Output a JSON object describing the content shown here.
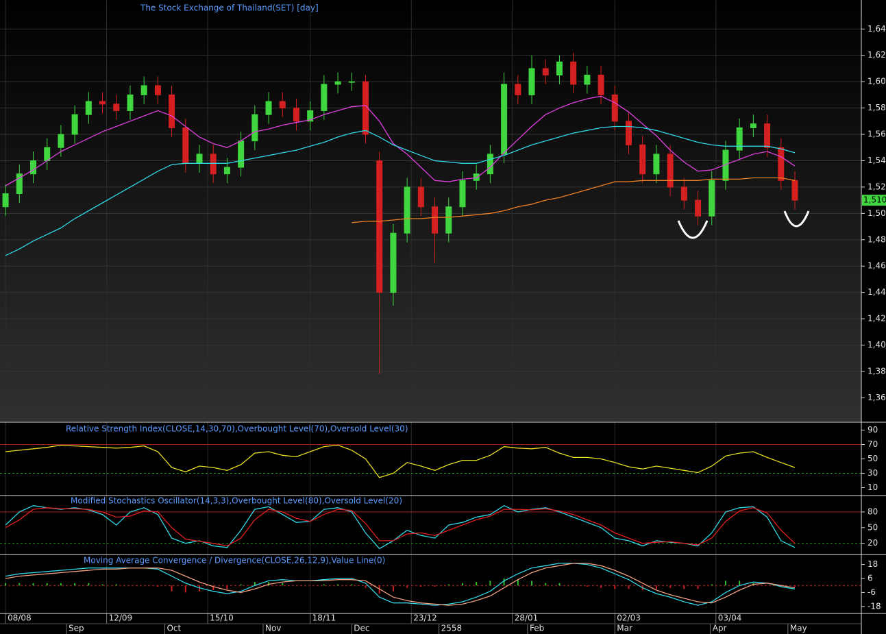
{
  "chart_data": [
    {
      "type": "candlestick",
      "title": "The Stock Exchange of Thailand(SET) [day]",
      "open": [
        1505,
        1515,
        1530,
        1540,
        1550,
        1560,
        1575,
        1585,
        1583,
        1578,
        1590,
        1597,
        1590,
        1565,
        1538,
        1545,
        1530,
        1535,
        1555,
        1575,
        1585,
        1580,
        1570,
        1578,
        1598,
        1600,
        1600,
        1540,
        1440,
        1485,
        1520,
        1505,
        1485,
        1505,
        1525,
        1530,
        1545,
        1598,
        1590,
        1610,
        1605,
        1615,
        1598,
        1605,
        1590,
        1570,
        1552,
        1530,
        1545,
        1520,
        1510,
        1498,
        1525,
        1548,
        1565,
        1568,
        1550,
        1525
      ],
      "high": [
        1522,
        1537,
        1547,
        1557,
        1567,
        1582,
        1592,
        1592,
        1590,
        1597,
        1604,
        1604,
        1597,
        1572,
        1552,
        1552,
        1542,
        1562,
        1582,
        1592,
        1592,
        1587,
        1585,
        1605,
        1607,
        1607,
        1605,
        1547,
        1492,
        1527,
        1527,
        1512,
        1512,
        1532,
        1537,
        1552,
        1607,
        1605,
        1620,
        1617,
        1620,
        1622,
        1612,
        1612,
        1597,
        1577,
        1559,
        1552,
        1552,
        1527,
        1517,
        1532,
        1555,
        1572,
        1575,
        1575,
        1557,
        1532
      ],
      "low": [
        1498,
        1508,
        1523,
        1533,
        1543,
        1553,
        1568,
        1576,
        1571,
        1571,
        1583,
        1583,
        1558,
        1531,
        1531,
        1523,
        1523,
        1528,
        1548,
        1568,
        1573,
        1563,
        1563,
        1571,
        1591,
        1593,
        1553,
        1378,
        1430,
        1478,
        1498,
        1462,
        1478,
        1498,
        1518,
        1523,
        1538,
        1583,
        1583,
        1598,
        1598,
        1591,
        1591,
        1583,
        1563,
        1545,
        1523,
        1523,
        1513,
        1503,
        1491,
        1491,
        1518,
        1541,
        1558,
        1543,
        1518,
        1503
      ],
      "close": [
        1515,
        1530,
        1540,
        1550,
        1560,
        1575,
        1585,
        1583,
        1578,
        1590,
        1597,
        1590,
        1565,
        1538,
        1545,
        1530,
        1535,
        1555,
        1575,
        1585,
        1580,
        1570,
        1578,
        1598,
        1600,
        1600,
        1560,
        1440,
        1485,
        1520,
        1505,
        1485,
        1505,
        1525,
        1530,
        1545,
        1598,
        1590,
        1610,
        1605,
        1615,
        1598,
        1605,
        1590,
        1570,
        1552,
        1530,
        1545,
        1520,
        1510,
        1498,
        1525,
        1548,
        1565,
        1568,
        1550,
        1525,
        1510
      ],
      "up_color": "#3fd63f",
      "down_color": "#d42020",
      "series": [
        {
          "color": "#e040e0",
          "values": [
            1521,
            1527,
            1533,
            1540,
            1547,
            1552,
            1557,
            1562,
            1566,
            1570,
            1574,
            1578,
            1574,
            1566,
            1558,
            1553,
            1550,
            1555,
            1562,
            1564,
            1567,
            1569,
            1571,
            1575,
            1578,
            1581,
            1582,
            1570,
            1553,
            1545,
            1535,
            1525,
            1524,
            1526,
            1527,
            1535,
            1546,
            1556,
            1566,
            1575,
            1580,
            1584,
            1587,
            1589,
            1584,
            1577,
            1568,
            1559,
            1548,
            1539,
            1532,
            1533,
            1537,
            1541,
            1545,
            1547,
            1543,
            1536
          ]
        },
        {
          "color": "#30d8e8",
          "values": [
            1468,
            1473,
            1479,
            1484,
            1489,
            1496,
            1502,
            1508,
            1514,
            1520,
            1526,
            1532,
            1537,
            1538,
            1538,
            1538,
            1538,
            1540,
            1542,
            1544,
            1546,
            1548,
            1551,
            1554,
            1558,
            1561,
            1563,
            1558,
            1552,
            1548,
            1544,
            1540,
            1539,
            1538,
            1538,
            1541,
            1544,
            1548,
            1552,
            1555,
            1558,
            1561,
            1563,
            1565,
            1566,
            1566,
            1565,
            1563,
            1560,
            1557,
            1554,
            1552,
            1551,
            1551,
            1551,
            1551,
            1549,
            1546
          ]
        },
        {
          "color": "#f08020",
          "values": [
            null,
            null,
            null,
            null,
            null,
            null,
            null,
            null,
            null,
            null,
            null,
            null,
            null,
            null,
            null,
            null,
            null,
            null,
            null,
            null,
            null,
            null,
            null,
            null,
            null,
            1493,
            1494,
            1494,
            1495,
            1496,
            1496,
            1497,
            1497,
            1498,
            1499,
            1500,
            1502,
            1505,
            1507,
            1510,
            1512,
            1515,
            1518,
            1521,
            1524,
            1524,
            1525,
            1525,
            1525,
            1525,
            1525,
            1526,
            1526,
            1526,
            1527,
            1527,
            1527,
            1525
          ]
        }
      ],
      "last_price": {
        "value": 1510,
        "label": "1,510."
      },
      "ylim": [
        1342,
        1662
      ],
      "yticks": [
        {
          "value": 1640,
          "label": "1,64"
        },
        {
          "value": 1620,
          "label": "1,62"
        },
        {
          "value": 1600,
          "label": "1,60"
        },
        {
          "value": 1580,
          "label": "1,58"
        },
        {
          "value": 1560,
          "label": "1,56"
        },
        {
          "value": 1540,
          "label": "1,54"
        },
        {
          "value": 1520,
          "label": "1,52"
        },
        {
          "value": 1500,
          "label": "1,50"
        },
        {
          "value": 1480,
          "label": "1,48"
        },
        {
          "value": 1460,
          "label": "1,46"
        },
        {
          "value": 1440,
          "label": "1,44"
        },
        {
          "value": 1420,
          "label": "1,42"
        },
        {
          "value": 1400,
          "label": "1,40"
        },
        {
          "value": 1380,
          "label": "1,38"
        },
        {
          "value": 1360,
          "label": "1,36"
        }
      ],
      "grid": true,
      "xlim": [
        -0.4,
        61.8
      ],
      "xticks": [
        {
          "value": 0,
          "label": "08/08"
        },
        {
          "value": 7.3,
          "label": "12/09"
        },
        {
          "value": 14.6,
          "label": "15/10"
        },
        {
          "value": 22,
          "label": "18/11"
        },
        {
          "value": 29.3,
          "label": "23/12"
        },
        {
          "value": 36.6,
          "label": "28/01"
        },
        {
          "value": 44,
          "label": "02/03"
        },
        {
          "value": 51.3,
          "label": "03/04"
        }
      ],
      "xticks2": [
        {
          "value": 4.4,
          "label": "Sep"
        },
        {
          "value": 11.5,
          "label": "Oct"
        },
        {
          "value": 18.6,
          "label": "Nov"
        },
        {
          "value": 25,
          "label": "Dec"
        },
        {
          "value": 31.3,
          "label": "2558"
        },
        {
          "value": 37.7,
          "label": "Feb"
        },
        {
          "value": 44,
          "label": "Mar"
        },
        {
          "value": 50.9,
          "label": "Apr"
        },
        {
          "value": 56.5,
          "label": "May"
        }
      ]
    },
    {
      "type": "line",
      "title": "Relative Strength Index(CLOSE,14,30,70),Overbought Level(70),Oversold Level(30)",
      "series": [
        {
          "color": "#e8e020",
          "values": [
            60,
            62,
            64,
            66,
            69,
            68,
            67,
            66,
            65,
            66,
            68,
            60,
            38,
            32,
            40,
            38,
            34,
            42,
            58,
            60,
            55,
            53,
            60,
            67,
            69,
            62,
            50,
            24,
            30,
            45,
            40,
            34,
            42,
            48,
            48,
            55,
            67,
            65,
            64,
            66,
            58,
            52,
            52,
            50,
            45,
            39,
            36,
            40,
            37,
            34,
            31,
            40,
            54,
            58,
            60,
            52,
            45,
            38
          ]
        }
      ],
      "levels": [
        {
          "value": 70,
          "color": "#a02020"
        },
        {
          "value": 30,
          "color": "#20a020"
        }
      ],
      "ylim": [
        0,
        100
      ],
      "yticks": [
        90,
        70,
        50,
        30,
        10
      ]
    },
    {
      "type": "line",
      "title": "Modified Stochastics Oscillator(14,3,3),Overbought Level(80),Oversold Level(20)",
      "series": [
        {
          "color": "#30d8e8",
          "values": [
            55,
            80,
            92,
            88,
            85,
            88,
            84,
            75,
            55,
            80,
            88,
            75,
            30,
            20,
            25,
            15,
            12,
            45,
            85,
            90,
            75,
            60,
            62,
            85,
            88,
            80,
            40,
            10,
            25,
            45,
            35,
            30,
            55,
            60,
            70,
            75,
            92,
            80,
            85,
            88,
            80,
            70,
            60,
            50,
            30,
            25,
            15,
            25,
            22,
            20,
            15,
            40,
            80,
            88,
            90,
            70,
            25,
            12
          ]
        },
        {
          "color": "#e02020",
          "values": [
            50,
            65,
            85,
            88,
            86,
            86,
            85,
            80,
            70,
            72,
            82,
            80,
            50,
            28,
            24,
            20,
            15,
            30,
            65,
            85,
            80,
            68,
            62,
            75,
            85,
            83,
            58,
            25,
            25,
            38,
            40,
            35,
            45,
            55,
            65,
            72,
            85,
            85,
            84,
            86,
            82,
            75,
            65,
            55,
            40,
            30,
            20,
            22,
            23,
            20,
            17,
            30,
            62,
            82,
            88,
            78,
            45,
            20
          ]
        }
      ],
      "levels": [
        {
          "value": 80,
          "color": "#a02020"
        },
        {
          "value": 20,
          "color": "#20a020"
        }
      ],
      "ylim": [
        0,
        110
      ],
      "yticks": [
        80,
        50,
        20
      ]
    },
    {
      "type": "macd",
      "title": "Moving Average Convergence / Divergence(CLOSE,26,12,9),Value Line(0)",
      "series": [
        {
          "color": "#30d8e8",
          "values": [
            8,
            10,
            11,
            12,
            13,
            14,
            15,
            15,
            15,
            15,
            15,
            14,
            8,
            2,
            -2,
            -5,
            -7,
            -5,
            0,
            4,
            5,
            4,
            4,
            5,
            6,
            6,
            2,
            -10,
            -15,
            -15,
            -16,
            -17,
            -16,
            -14,
            -10,
            -5,
            4,
            10,
            15,
            17,
            19,
            19,
            18,
            15,
            10,
            5,
            -2,
            -7,
            -10,
            -14,
            -17,
            -14,
            -6,
            0,
            3,
            2,
            -1,
            -3
          ]
        },
        {
          "color": "#f0a080",
          "values": [
            6,
            8,
            9,
            10,
            11,
            12,
            13,
            14,
            14,
            15,
            15,
            15,
            13,
            8,
            3,
            -1,
            -4,
            -6,
            -3,
            1,
            3,
            4,
            4,
            4,
            5,
            5,
            4,
            -3,
            -10,
            -13,
            -15,
            -16,
            -17,
            -16,
            -13,
            -9,
            -2,
            5,
            11,
            15,
            17,
            19,
            19,
            17,
            13,
            8,
            2,
            -4,
            -8,
            -11,
            -14,
            -15,
            -10,
            -4,
            1,
            2,
            0,
            -2
          ]
        }
      ],
      "histogram": {
        "up_color": "#30c030",
        "down_color": "#d02020",
        "values": [
          2,
          2,
          2,
          2,
          2,
          2,
          2,
          1,
          1,
          0,
          0,
          -1,
          -5,
          -6,
          -5,
          -4,
          -3,
          1,
          3,
          3,
          2,
          0,
          0,
          1,
          1,
          1,
          -2,
          -7,
          -5,
          -2,
          -1,
          -1,
          1,
          2,
          3,
          4,
          6,
          5,
          4,
          2,
          2,
          0,
          -1,
          -2,
          -3,
          -3,
          -4,
          -3,
          -2,
          -3,
          -3,
          1,
          4,
          4,
          2,
          0,
          -1,
          -1
        ]
      },
      "levels": [
        {
          "value": 0,
          "color": "#c02020"
        }
      ],
      "ylim": [
        -24,
        26
      ],
      "yticks": [
        18,
        6,
        -6,
        -18
      ]
    }
  ]
}
